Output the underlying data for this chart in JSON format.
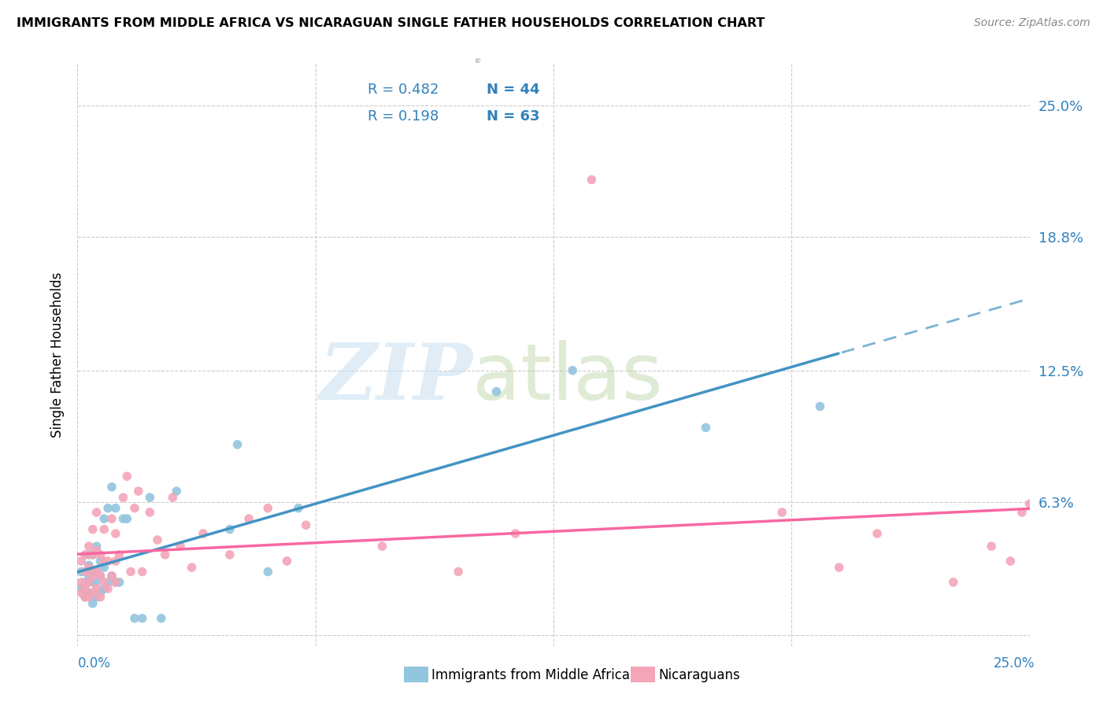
{
  "title": "IMMIGRANTS FROM MIDDLE AFRICA VS NICARAGUAN SINGLE FATHER HOUSEHOLDS CORRELATION CHART",
  "source": "Source: ZipAtlas.com",
  "ylabel": "Single Father Households",
  "color_blue": "#92c5de",
  "color_pink": "#f4a5b8",
  "color_blue_line": "#4393c3",
  "color_pink_line": "#f768a1",
  "color_blue_text": "#3182bd",
  "color_grid": "#cccccc",
  "xlim": [
    0.0,
    0.25
  ],
  "ylim": [
    -0.005,
    0.27
  ],
  "yticks": [
    0.0,
    0.063,
    0.125,
    0.188,
    0.25
  ],
  "ytick_labels": [
    "",
    "6.3%",
    "12.5%",
    "18.8%",
    "25.0%"
  ],
  "xtick_vals": [
    0.0,
    0.25
  ],
  "xtick_labels": [
    "0.0%",
    "25.0%"
  ],
  "legend_r1_text": "R = 0.482",
  "legend_n1_text": "N = 44",
  "legend_r2_text": "R = 0.198",
  "legend_n2_text": "N = 63",
  "blue_scatter_x": [
    0.001,
    0.001,
    0.002,
    0.002,
    0.003,
    0.003,
    0.003,
    0.003,
    0.004,
    0.004,
    0.004,
    0.004,
    0.005,
    0.005,
    0.005,
    0.005,
    0.006,
    0.006,
    0.006,
    0.007,
    0.007,
    0.007,
    0.008,
    0.008,
    0.009,
    0.009,
    0.01,
    0.01,
    0.011,
    0.012,
    0.013,
    0.015,
    0.017,
    0.019,
    0.022,
    0.026,
    0.04,
    0.042,
    0.05,
    0.058,
    0.11,
    0.13,
    0.165,
    0.195
  ],
  "blue_scatter_y": [
    0.022,
    0.03,
    0.018,
    0.025,
    0.02,
    0.028,
    0.033,
    0.038,
    0.015,
    0.025,
    0.03,
    0.038,
    0.018,
    0.025,
    0.03,
    0.042,
    0.02,
    0.028,
    0.035,
    0.022,
    0.032,
    0.055,
    0.025,
    0.06,
    0.028,
    0.07,
    0.025,
    0.06,
    0.025,
    0.055,
    0.055,
    0.008,
    0.008,
    0.065,
    0.008,
    0.068,
    0.05,
    0.09,
    0.03,
    0.06,
    0.115,
    0.125,
    0.098,
    0.108
  ],
  "pink_scatter_x": [
    0.001,
    0.001,
    0.001,
    0.002,
    0.002,
    0.002,
    0.002,
    0.003,
    0.003,
    0.003,
    0.003,
    0.004,
    0.004,
    0.004,
    0.004,
    0.005,
    0.005,
    0.005,
    0.005,
    0.006,
    0.006,
    0.006,
    0.007,
    0.007,
    0.007,
    0.008,
    0.008,
    0.009,
    0.009,
    0.01,
    0.01,
    0.01,
    0.011,
    0.012,
    0.013,
    0.014,
    0.015,
    0.016,
    0.017,
    0.019,
    0.021,
    0.023,
    0.025,
    0.027,
    0.03,
    0.033,
    0.04,
    0.045,
    0.05,
    0.055,
    0.06,
    0.08,
    0.1,
    0.115,
    0.135,
    0.185,
    0.2,
    0.21,
    0.23,
    0.24,
    0.245,
    0.248,
    0.25
  ],
  "pink_scatter_y": [
    0.02,
    0.025,
    0.035,
    0.018,
    0.022,
    0.03,
    0.038,
    0.018,
    0.025,
    0.032,
    0.042,
    0.02,
    0.028,
    0.038,
    0.05,
    0.022,
    0.03,
    0.04,
    0.058,
    0.018,
    0.028,
    0.038,
    0.025,
    0.035,
    0.05,
    0.022,
    0.035,
    0.028,
    0.055,
    0.025,
    0.035,
    0.048,
    0.038,
    0.065,
    0.075,
    0.03,
    0.06,
    0.068,
    0.03,
    0.058,
    0.045,
    0.038,
    0.065,
    0.042,
    0.032,
    0.048,
    0.038,
    0.055,
    0.06,
    0.035,
    0.052,
    0.042,
    0.03,
    0.048,
    0.215,
    0.058,
    0.032,
    0.048,
    0.025,
    0.042,
    0.035,
    0.058,
    0.062
  ]
}
